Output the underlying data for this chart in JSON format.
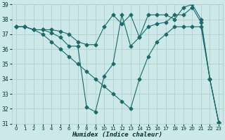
{
  "title": "",
  "xlabel": "Humidex (Indice chaleur)",
  "ylabel": "",
  "bg_color": "#cce8e8",
  "grid_color": "#aacccc",
  "line_color": "#1a6b6b",
  "marker": "D",
  "marker_size": 2.5,
  "ylim": [
    31,
    39
  ],
  "xlim": [
    -0.5,
    23.5
  ],
  "yticks": [
    31,
    32,
    33,
    34,
    35,
    36,
    37,
    38,
    39
  ],
  "xticks": [
    0,
    1,
    2,
    3,
    4,
    5,
    6,
    7,
    8,
    9,
    10,
    11,
    12,
    13,
    14,
    15,
    16,
    17,
    18,
    19,
    20,
    21,
    22,
    23
  ],
  "series": [
    [
      37.5,
      37.5,
      37.3,
      37.3,
      37.3,
      37.2,
      37.0,
      36.5,
      36.3,
      36.3,
      37.5,
      38.3,
      37.7,
      38.3,
      36.8,
      38.3,
      38.3,
      38.3,
      38.0,
      38.8,
      39.0,
      38.0,
      34.0,
      31.1
    ],
    [
      37.5,
      37.5,
      37.3,
      37.3,
      37.1,
      36.8,
      36.2,
      36.2,
      32.1,
      31.8,
      34.2,
      35.0,
      38.3,
      36.2,
      36.8,
      37.5,
      37.7,
      37.8,
      38.3,
      38.3,
      38.8,
      37.8,
      34.0,
      31.1
    ],
    [
      37.5,
      37.5,
      37.3,
      37.0,
      36.5,
      36.0,
      35.5,
      35.0,
      34.5,
      34.0,
      33.5,
      33.0,
      32.5,
      32.0,
      34.0,
      35.5,
      36.5,
      37.0,
      37.5,
      37.5,
      37.5,
      37.5,
      34.0,
      31.1
    ]
  ]
}
